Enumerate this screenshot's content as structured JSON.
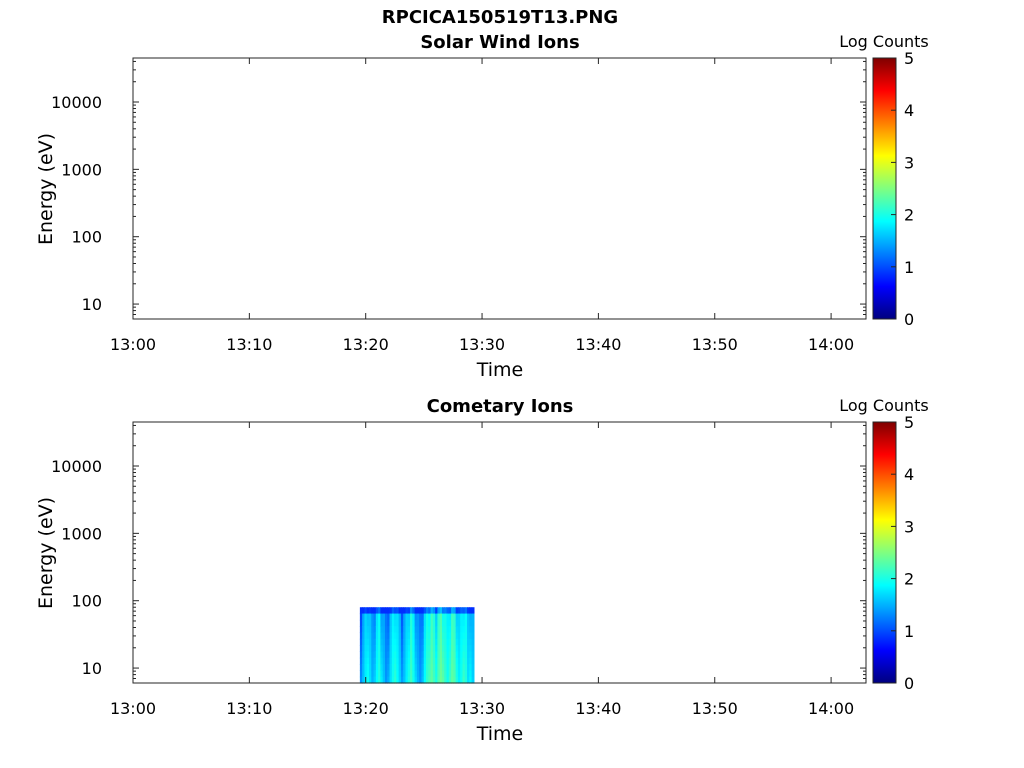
{
  "figure": {
    "title": "RPCICA150519T13.PNG"
  },
  "chart_data": [
    {
      "type": "heatmap",
      "title": "Solar Wind Ions",
      "xlabel": "Time",
      "ylabel": "Energy (eV)",
      "x_ticks": [
        "13:00",
        "13:10",
        "13:20",
        "13:30",
        "13:40",
        "13:50",
        "14:00"
      ],
      "xlim": [
        "13:00",
        "14:03"
      ],
      "y_scale": "log",
      "y_ticks": [
        10,
        100,
        1000,
        10000
      ],
      "ylim": [
        6,
        45000
      ],
      "grid": false,
      "colorbar": {
        "label": "Log Counts",
        "ticks": [
          0,
          1,
          2,
          3,
          4,
          5
        ],
        "range": [
          0,
          5
        ],
        "colormap": "jet"
      },
      "data_regions": []
    },
    {
      "type": "heatmap",
      "title": "Cometary Ions",
      "xlabel": "Time",
      "ylabel": "Energy (eV)",
      "x_ticks": [
        "13:00",
        "13:10",
        "13:20",
        "13:30",
        "13:40",
        "13:50",
        "14:00"
      ],
      "xlim": [
        "13:00",
        "14:03"
      ],
      "y_scale": "log",
      "y_ticks": [
        10,
        100,
        1000,
        10000
      ],
      "ylim": [
        6,
        45000
      ],
      "grid": false,
      "colorbar": {
        "label": "Log Counts",
        "ticks": [
          0,
          1,
          2,
          3,
          4,
          5
        ],
        "range": [
          0,
          5
        ],
        "colormap": "jet"
      },
      "data_regions": [
        {
          "time_start": "13:19.5",
          "time_end": "13:29.3",
          "energy_min_eV": 6,
          "energy_max_eV": 80,
          "log_counts_range": [
            0.5,
            2.5
          ],
          "column_levels": [
            1.0,
            1.3,
            1.6,
            1.8,
            1.5,
            1.2,
            1.4,
            1.7,
            1.9,
            1.6,
            1.3,
            1.0,
            1.2,
            1.5,
            1.8,
            2.0,
            1.7,
            1.4,
            1.1,
            1.3,
            1.6,
            1.9,
            2.1,
            1.8,
            1.5,
            1.2,
            1.0,
            1.3,
            1.7,
            2.0,
            2.2,
            2.3,
            2.1,
            1.9,
            2.2,
            2.4,
            2.3,
            2.0,
            1.8,
            2.1,
            2.3,
            2.2,
            1.9,
            1.6,
            1.8,
            2.1,
            1.9,
            1.5,
            1.7,
            1.4
          ]
        }
      ]
    }
  ]
}
